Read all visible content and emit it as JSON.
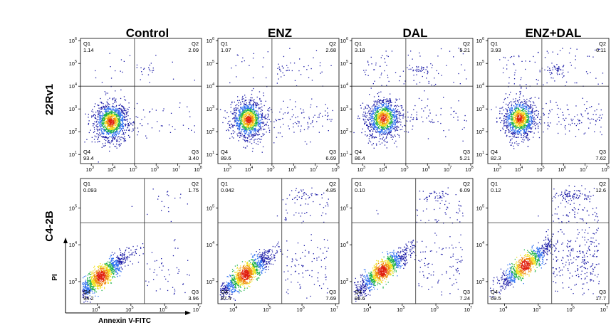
{
  "chart_data": {
    "type": "scatter",
    "columns": [
      "Control",
      "ENZ",
      "DAL",
      "ENZ+DAL"
    ],
    "rows": [
      "22Rv1",
      "C4-2B"
    ],
    "xlabel": "Annexin V-FITC",
    "ylabel": "PI",
    "colormap": [
      "#1a1aa6",
      "#2e6ff0",
      "#1fb24a",
      "#f0e020",
      "#f08a10",
      "#e02010"
    ],
    "quadrant_names": [
      "Q1",
      "Q2",
      "Q3",
      "Q4"
    ],
    "panels": [
      {
        "row": "22Rv1",
        "column": "Control",
        "quadrants": {
          "Q1": "1.14",
          "Q2": "2.09",
          "Q3": "3.40",
          "Q4": "93.4"
        },
        "xticks": [
          {
            "exp": 3,
            "label": "10",
            "sup": "3"
          },
          {
            "exp": 4,
            "label": "10",
            "sup": "4"
          },
          {
            "exp": 5,
            "label": "10",
            "sup": "5"
          },
          {
            "exp": 6,
            "label": "10",
            "sup": "6"
          },
          {
            "exp": 7,
            "label": "10",
            "sup": "7"
          },
          {
            "exp": 8,
            "label": "10",
            "sup": "8"
          }
        ],
        "yticks": [
          {
            "exp": 1,
            "label": "10",
            "sup": "1"
          },
          {
            "exp": 2,
            "label": "10",
            "sup": "2"
          },
          {
            "exp": 3,
            "label": "10",
            "sup": "3"
          },
          {
            "exp": 4,
            "label": "10",
            "sup": "4"
          },
          {
            "exp": 5,
            "label": "10",
            "sup": "5"
          },
          {
            "exp": 6,
            "label": "10",
            "sup": "6"
          }
        ],
        "xlim_log10": [
          2.5,
          8.1
        ],
        "ylim_log10": [
          0.6,
          6.1
        ],
        "gate_log10": {
          "x": 5.0,
          "y": 4.0
        },
        "population_center_log10": [
          3.9,
          2.45
        ]
      },
      {
        "row": "22Rv1",
        "column": "ENZ",
        "quadrants": {
          "Q1": "1.07",
          "Q2": "2.68",
          "Q3": "6.69",
          "Q4": "89.6"
        },
        "xticks": [
          {
            "exp": 3,
            "label": "10",
            "sup": "3"
          },
          {
            "exp": 4,
            "label": "10",
            "sup": "4"
          },
          {
            "exp": 5,
            "label": "10",
            "sup": "5"
          },
          {
            "exp": 6,
            "label": "10",
            "sup": "6"
          },
          {
            "exp": 7,
            "label": "10",
            "sup": "7"
          },
          {
            "exp": 8,
            "label": "10",
            "sup": "8"
          }
        ],
        "yticks": [
          {
            "exp": 1,
            "label": "10",
            "sup": "1"
          },
          {
            "exp": 2,
            "label": "10",
            "sup": "2"
          },
          {
            "exp": 3,
            "label": "10",
            "sup": "3"
          },
          {
            "exp": 4,
            "label": "10",
            "sup": "4"
          },
          {
            "exp": 5,
            "label": "10",
            "sup": "5"
          },
          {
            "exp": 6,
            "label": "10",
            "sup": "6"
          }
        ],
        "xlim_log10": [
          2.5,
          8.1
        ],
        "ylim_log10": [
          0.6,
          6.1
        ],
        "gate_log10": {
          "x": 5.0,
          "y": 4.0
        },
        "population_center_log10": [
          3.9,
          2.55
        ]
      },
      {
        "row": "22Rv1",
        "column": "DAL",
        "quadrants": {
          "Q1": "3.18",
          "Q2": "5.21",
          "Q3": "5.21",
          "Q4": "86.4"
        },
        "xticks": [
          {
            "exp": 3,
            "label": "10",
            "sup": "3"
          },
          {
            "exp": 4,
            "label": "10",
            "sup": "4"
          },
          {
            "exp": 5,
            "label": "10",
            "sup": "5"
          },
          {
            "exp": 6,
            "label": "10",
            "sup": "6"
          },
          {
            "exp": 7,
            "label": "10",
            "sup": "7"
          },
          {
            "exp": 8,
            "label": "10",
            "sup": "8"
          }
        ],
        "yticks": [
          {
            "exp": 1,
            "label": "10",
            "sup": "1"
          },
          {
            "exp": 2,
            "label": "10",
            "sup": "2"
          },
          {
            "exp": 3,
            "label": "10",
            "sup": "3"
          },
          {
            "exp": 4,
            "label": "10",
            "sup": "4"
          },
          {
            "exp": 5,
            "label": "10",
            "sup": "5"
          },
          {
            "exp": 6,
            "label": "10",
            "sup": "6"
          }
        ],
        "xlim_log10": [
          2.5,
          8.1
        ],
        "ylim_log10": [
          0.6,
          6.1
        ],
        "gate_log10": {
          "x": 5.0,
          "y": 4.0
        },
        "population_center_log10": [
          3.95,
          2.6
        ]
      },
      {
        "row": "22Rv1",
        "column": "ENZ+DAL",
        "quadrants": {
          "Q1": "3.93",
          "Q2": "6.11",
          "Q3": "7.62",
          "Q4": "82.3"
        },
        "xticks": [
          {
            "exp": 3,
            "label": "10",
            "sup": "3"
          },
          {
            "exp": 4,
            "label": "10",
            "sup": "4"
          },
          {
            "exp": 5,
            "label": "10",
            "sup": "5"
          },
          {
            "exp": 6,
            "label": "10",
            "sup": "6"
          },
          {
            "exp": 7,
            "label": "10",
            "sup": "7"
          },
          {
            "exp": 8,
            "label": "10",
            "sup": "8"
          }
        ],
        "yticks": [
          {
            "exp": 1,
            "label": "10",
            "sup": "1"
          },
          {
            "exp": 2,
            "label": "10",
            "sup": "2"
          },
          {
            "exp": 3,
            "label": "10",
            "sup": "3"
          },
          {
            "exp": 4,
            "label": "10",
            "sup": "4"
          },
          {
            "exp": 5,
            "label": "10",
            "sup": "5"
          },
          {
            "exp": 6,
            "label": "10",
            "sup": "6"
          }
        ],
        "xlim_log10": [
          2.5,
          8.1
        ],
        "ylim_log10": [
          0.6,
          6.1
        ],
        "gate_log10": {
          "x": 5.0,
          "y": 4.0
        },
        "population_center_log10": [
          3.95,
          2.6
        ]
      },
      {
        "row": "C4-2B",
        "column": "Control",
        "quadrants": {
          "Q1": "0.093",
          "Q2": "1.75",
          "Q3": "3.96",
          "Q4": "94.2"
        },
        "xticks": [
          {
            "exp": 4,
            "label": "10",
            "sup": "4"
          },
          {
            "exp": 5,
            "label": "10",
            "sup": "5"
          },
          {
            "exp": 6,
            "label": "10",
            "sup": "6"
          },
          {
            "exp": 7,
            "label": "10",
            "sup": "7"
          }
        ],
        "yticks": [
          {
            "exp": 3,
            "label": "10",
            "sup": "3"
          },
          {
            "exp": 4,
            "label": "10",
            "sup": "4"
          },
          {
            "exp": 5,
            "label": "10",
            "sup": "5"
          }
        ],
        "xlim_log10": [
          3.5,
          7.1
        ],
        "ylim_log10": [
          2.4,
          5.8
        ],
        "gate_log10": {
          "x": 5.4,
          "y": 4.6
        },
        "population_center_log10": [
          4.1,
          3.15
        ]
      },
      {
        "row": "C4-2B",
        "column": "ENZ",
        "quadrants": {
          "Q1": "0.042",
          "Q2": "4.85",
          "Q3": "7.69",
          "Q4": "87.4"
        },
        "xticks": [
          {
            "exp": 4,
            "label": "10",
            "sup": "4"
          },
          {
            "exp": 5,
            "label": "10",
            "sup": "5"
          },
          {
            "exp": 6,
            "label": "10",
            "sup": "6"
          },
          {
            "exp": 7,
            "label": "10",
            "sup": "7"
          }
        ],
        "yticks": [
          {
            "exp": 3,
            "label": "10",
            "sup": "3"
          },
          {
            "exp": 4,
            "label": "10",
            "sup": "4"
          },
          {
            "exp": 5,
            "label": "10",
            "sup": "5"
          }
        ],
        "xlim_log10": [
          3.5,
          7.1
        ],
        "ylim_log10": [
          2.4,
          5.8
        ],
        "gate_log10": {
          "x": 5.4,
          "y": 4.6
        },
        "population_center_log10": [
          4.3,
          3.2
        ]
      },
      {
        "row": "C4-2B",
        "column": "DAL",
        "quadrants": {
          "Q1": "0.10",
          "Q2": "6.09",
          "Q3": "7.24",
          "Q4": "86.6"
        },
        "xticks": [
          {
            "exp": 4,
            "label": "10",
            "sup": "4"
          },
          {
            "exp": 5,
            "label": "10",
            "sup": "5"
          },
          {
            "exp": 6,
            "label": "10",
            "sup": "6"
          },
          {
            "exp": 7,
            "label": "10",
            "sup": "7"
          }
        ],
        "yticks": [
          {
            "exp": 3,
            "label": "10",
            "sup": "3"
          },
          {
            "exp": 4,
            "label": "10",
            "sup": "4"
          },
          {
            "exp": 5,
            "label": "10",
            "sup": "5"
          }
        ],
        "xlim_log10": [
          3.5,
          7.1
        ],
        "ylim_log10": [
          2.4,
          5.8
        ],
        "gate_log10": {
          "x": 5.4,
          "y": 4.6
        },
        "population_center_log10": [
          4.4,
          3.3
        ]
      },
      {
        "row": "C4-2B",
        "column": "ENZ+DAL",
        "quadrants": {
          "Q1": "0.12",
          "Q2": "12.6",
          "Q3": "17.7",
          "Q4": "69.5"
        },
        "xticks": [
          {
            "exp": 4,
            "label": "10",
            "sup": "4"
          },
          {
            "exp": 5,
            "label": "10",
            "sup": "5"
          },
          {
            "exp": 6,
            "label": "10",
            "sup": "6"
          },
          {
            "exp": 7,
            "label": "10",
            "sup": "7"
          }
        ],
        "yticks": [
          {
            "exp": 3,
            "label": "10",
            "sup": "3"
          },
          {
            "exp": 4,
            "label": "10",
            "sup": "4"
          },
          {
            "exp": 5,
            "label": "10",
            "sup": "5"
          }
        ],
        "xlim_log10": [
          3.5,
          7.1
        ],
        "ylim_log10": [
          2.4,
          5.8
        ],
        "gate_log10": {
          "x": 5.4,
          "y": 4.6
        },
        "population_center_log10": [
          4.6,
          3.45
        ]
      }
    ]
  }
}
